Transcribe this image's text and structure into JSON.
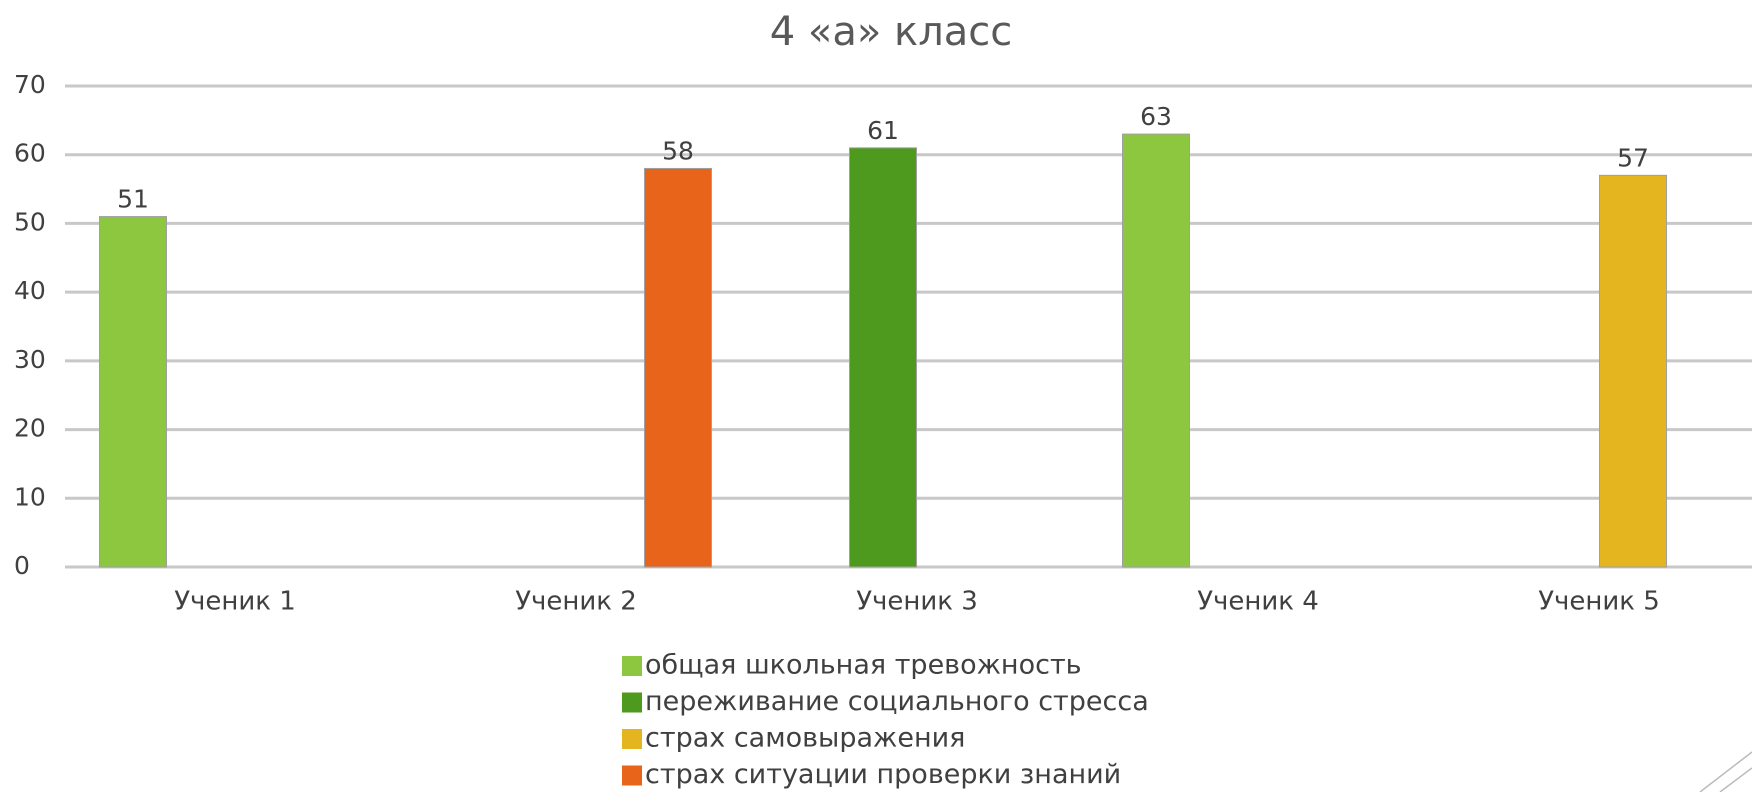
{
  "chart_data": {
    "type": "bar",
    "title": "4 «а» класс",
    "categories": [
      "Ученик 1",
      "Ученик 2",
      "Ученик 3",
      "Ученик 4",
      "Ученик 5"
    ],
    "series": [
      {
        "name": "общая школьная тревожность",
        "color": "#8dc63f",
        "values": [
          51,
          null,
          null,
          63,
          null
        ]
      },
      {
        "name": "переживание социального стресса",
        "color": "#4e9a1e",
        "values": [
          null,
          null,
          61,
          null,
          null
        ]
      },
      {
        "name": "страх самовыражения",
        "color": "#e5b520",
        "values": [
          null,
          null,
          null,
          null,
          57
        ]
      },
      {
        "name": "страх ситуации проверки знаний",
        "color": "#e8641b",
        "values": [
          null,
          58,
          null,
          null,
          null
        ]
      }
    ],
    "ylim": [
      0,
      70
    ],
    "yticks": [
      0,
      10,
      20,
      30,
      40,
      50,
      60,
      70
    ],
    "grid": true,
    "legend": "bottom"
  }
}
